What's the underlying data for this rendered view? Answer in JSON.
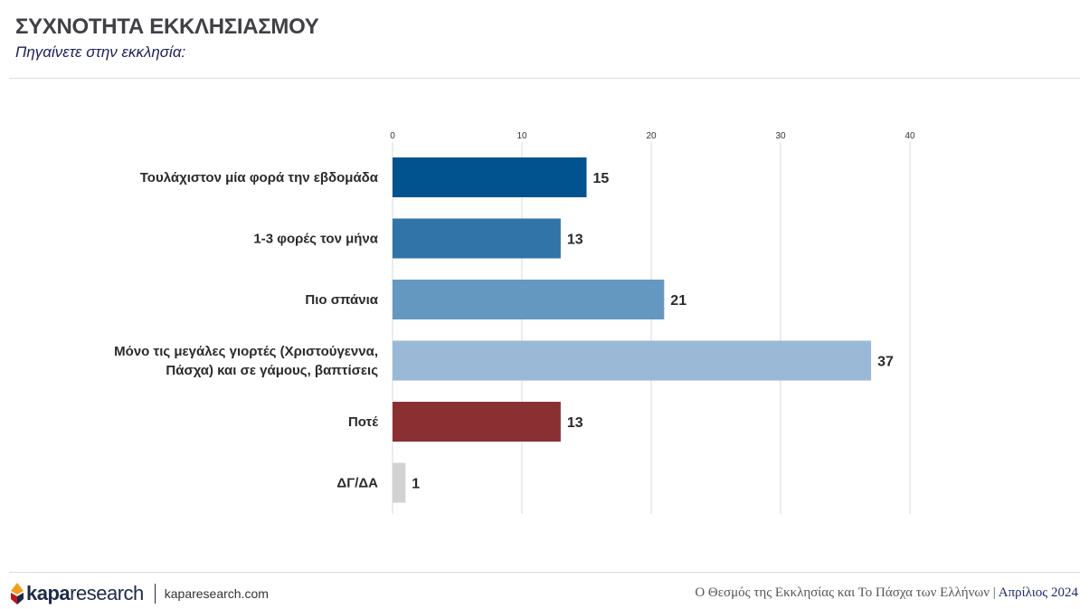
{
  "header": {
    "title": "ΣΥΧΝΟΤΗΤΑ ΕΚΚΛΗΣΙΑΣΜΟΥ",
    "subtitle": "Πηγαίνετε στην εκκλησία:"
  },
  "chart_data": {
    "type": "bar",
    "orientation": "horizontal",
    "categories": [
      [
        "Τουλάχιστον μία φορά την εβδομάδα"
      ],
      [
        "1-3 φορές τον μήνα"
      ],
      [
        "Πιο σπάνια"
      ],
      [
        "Μόνο τις μεγάλες γιορτές (Χριστούγεννα,",
        "Πάσχα) και σε γάμους, βαπτίσεις"
      ],
      [
        "Ποτέ"
      ],
      [
        "ΔΓ/ΔΑ"
      ]
    ],
    "values": [
      15,
      13,
      21,
      37,
      13,
      1
    ],
    "colors": [
      "#00538f",
      "#3174a8",
      "#6498c0",
      "#9ab9d6",
      "#8a3033",
      "#d2d2d2"
    ],
    "xlim": [
      0,
      40
    ],
    "xticks": [
      0,
      10,
      20,
      30,
      40
    ],
    "title": "ΣΥΧΝΟΤΗΤΑ ΕΚΚΛΗΣΙΑΣΜΟΥ",
    "xlabel": "",
    "ylabel": "",
    "grid": true,
    "axis_position": "top"
  },
  "footer": {
    "logo_text_a": "kapa",
    "logo_text_b": "research",
    "website": "kaparesearch.com",
    "report_title": "Ο Θεσμός της Εκκλησίας και Το Πάσχα των Ελλήνων",
    "separator": "|",
    "date": "Απρίλιος 2024",
    "logo_color": "#1e2a4a"
  }
}
